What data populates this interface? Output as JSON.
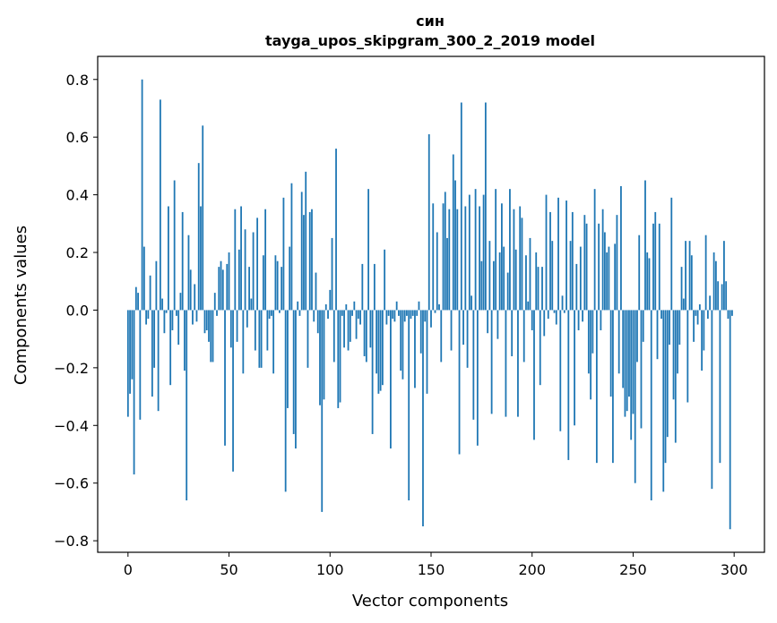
{
  "chart_data": {
    "type": "bar",
    "title_line1": "син",
    "title_line2": "tayga_upos_skipgram_300_2_2019 model",
    "xlabel": "Vector components",
    "ylabel": "Components values",
    "xlim": [
      -15,
      315
    ],
    "ylim": [
      -0.84,
      0.88
    ],
    "xticks": [
      0,
      50,
      100,
      150,
      200,
      250,
      300
    ],
    "xtick_labels": [
      "0",
      "50",
      "100",
      "150",
      "200",
      "250",
      "300"
    ],
    "yticks": [
      0.8,
      0.6,
      0.4,
      0.2,
      0.0,
      -0.2,
      -0.4,
      -0.6,
      -0.8
    ],
    "ytick_labels": [
      "0.8",
      "0.6",
      "0.4",
      "0.2",
      "0.0",
      "−0.2",
      "−0.4",
      "−0.6",
      "−0.8"
    ],
    "bar_color": "#1f77b4",
    "values": [
      -0.37,
      -0.29,
      -0.24,
      -0.57,
      0.08,
      0.06,
      -0.38,
      0.8,
      0.22,
      -0.05,
      -0.03,
      0.12,
      -0.3,
      -0.2,
      0.17,
      -0.35,
      0.73,
      0.04,
      -0.08,
      -0.01,
      0.36,
      -0.26,
      -0.07,
      0.45,
      -0.02,
      -0.12,
      0.06,
      0.34,
      -0.21,
      -0.66,
      0.26,
      0.14,
      -0.05,
      0.09,
      -0.04,
      0.51,
      0.36,
      0.64,
      -0.08,
      -0.07,
      -0.11,
      -0.18,
      -0.18,
      0.06,
      -0.02,
      0.15,
      0.17,
      0.14,
      -0.47,
      0.16,
      0.2,
      -0.13,
      -0.56,
      0.35,
      -0.11,
      0.21,
      0.36,
      -0.22,
      0.28,
      -0.06,
      0.15,
      0.04,
      0.27,
      -0.14,
      0.32,
      -0.2,
      -0.2,
      0.19,
      0.35,
      -0.14,
      -0.03,
      -0.02,
      -0.22,
      0.19,
      0.17,
      -0.01,
      0.15,
      0.39,
      -0.63,
      -0.34,
      0.22,
      0.44,
      -0.43,
      -0.48,
      0.03,
      -0.02,
      0.41,
      0.33,
      0.48,
      -0.2,
      0.34,
      0.35,
      -0.04,
      0.13,
      -0.08,
      -0.33,
      -0.7,
      -0.31,
      0.02,
      -0.03,
      0.07,
      0.25,
      -0.18,
      0.56,
      -0.34,
      -0.32,
      -0.02,
      -0.13,
      0.02,
      -0.14,
      -0.11,
      -0.02,
      0.03,
      -0.1,
      -0.03,
      -0.05,
      0.16,
      -0.16,
      -0.18,
      0.42,
      -0.13,
      -0.43,
      0.16,
      -0.22,
      -0.29,
      -0.28,
      -0.26,
      0.21,
      -0.05,
      -0.02,
      -0.48,
      -0.03,
      -0.04,
      0.03,
      -0.02,
      -0.21,
      -0.24,
      -0.04,
      -0.02,
      -0.66,
      -0.03,
      -0.02,
      -0.27,
      -0.02,
      0.03,
      -0.15,
      -0.75,
      -0.04,
      -0.29,
      0.61,
      -0.06,
      0.37,
      -0.01,
      0.27,
      0.02,
      -0.18,
      0.37,
      0.41,
      0.25,
      0.35,
      -0.14,
      0.54,
      0.45,
      0.35,
      -0.5,
      0.72,
      -0.12,
      0.36,
      -0.2,
      0.4,
      0.05,
      -0.38,
      0.42,
      -0.47,
      0.36,
      0.17,
      0.4,
      0.72,
      -0.08,
      0.24,
      -0.36,
      0.17,
      0.42,
      -0.1,
      0.2,
      0.37,
      0.22,
      -0.37,
      0.13,
      0.42,
      -0.16,
      0.35,
      0.21,
      -0.37,
      0.36,
      0.32,
      -0.18,
      0.19,
      0.03,
      0.25,
      -0.07,
      -0.45,
      0.2,
      0.15,
      -0.26,
      0.15,
      -0.09,
      0.4,
      -0.03,
      0.34,
      0.24,
      -0.01,
      -0.05,
      0.39,
      -0.42,
      0.05,
      -0.01,
      0.38,
      -0.52,
      0.24,
      0.34,
      -0.4,
      0.16,
      -0.07,
      0.22,
      -0.04,
      0.33,
      0.3,
      -0.22,
      -0.31,
      -0.15,
      0.42,
      -0.53,
      0.3,
      -0.07,
      0.35,
      0.27,
      0.2,
      0.22,
      -0.3,
      -0.53,
      0.23,
      0.33,
      -0.22,
      0.43,
      -0.27,
      -0.37,
      -0.35,
      -0.3,
      -0.45,
      -0.36,
      -0.6,
      -0.18,
      0.26,
      -0.41,
      -0.11,
      0.45,
      0.2,
      0.18,
      -0.66,
      0.3,
      0.34,
      -0.17,
      0.3,
      -0.03,
      -0.63,
      -0.53,
      -0.44,
      -0.12,
      0.39,
      -0.31,
      -0.46,
      -0.22,
      -0.12,
      0.15,
      0.04,
      0.24,
      -0.32,
      0.24,
      0.19,
      -0.11,
      -0.02,
      -0.05,
      0.02,
      -0.21,
      -0.14,
      0.26,
      -0.03,
      0.05,
      -0.62,
      0.2,
      0.17,
      0.1,
      -0.53,
      0.09,
      0.24,
      0.1,
      -0.03,
      -0.76,
      -0.02
    ]
  }
}
